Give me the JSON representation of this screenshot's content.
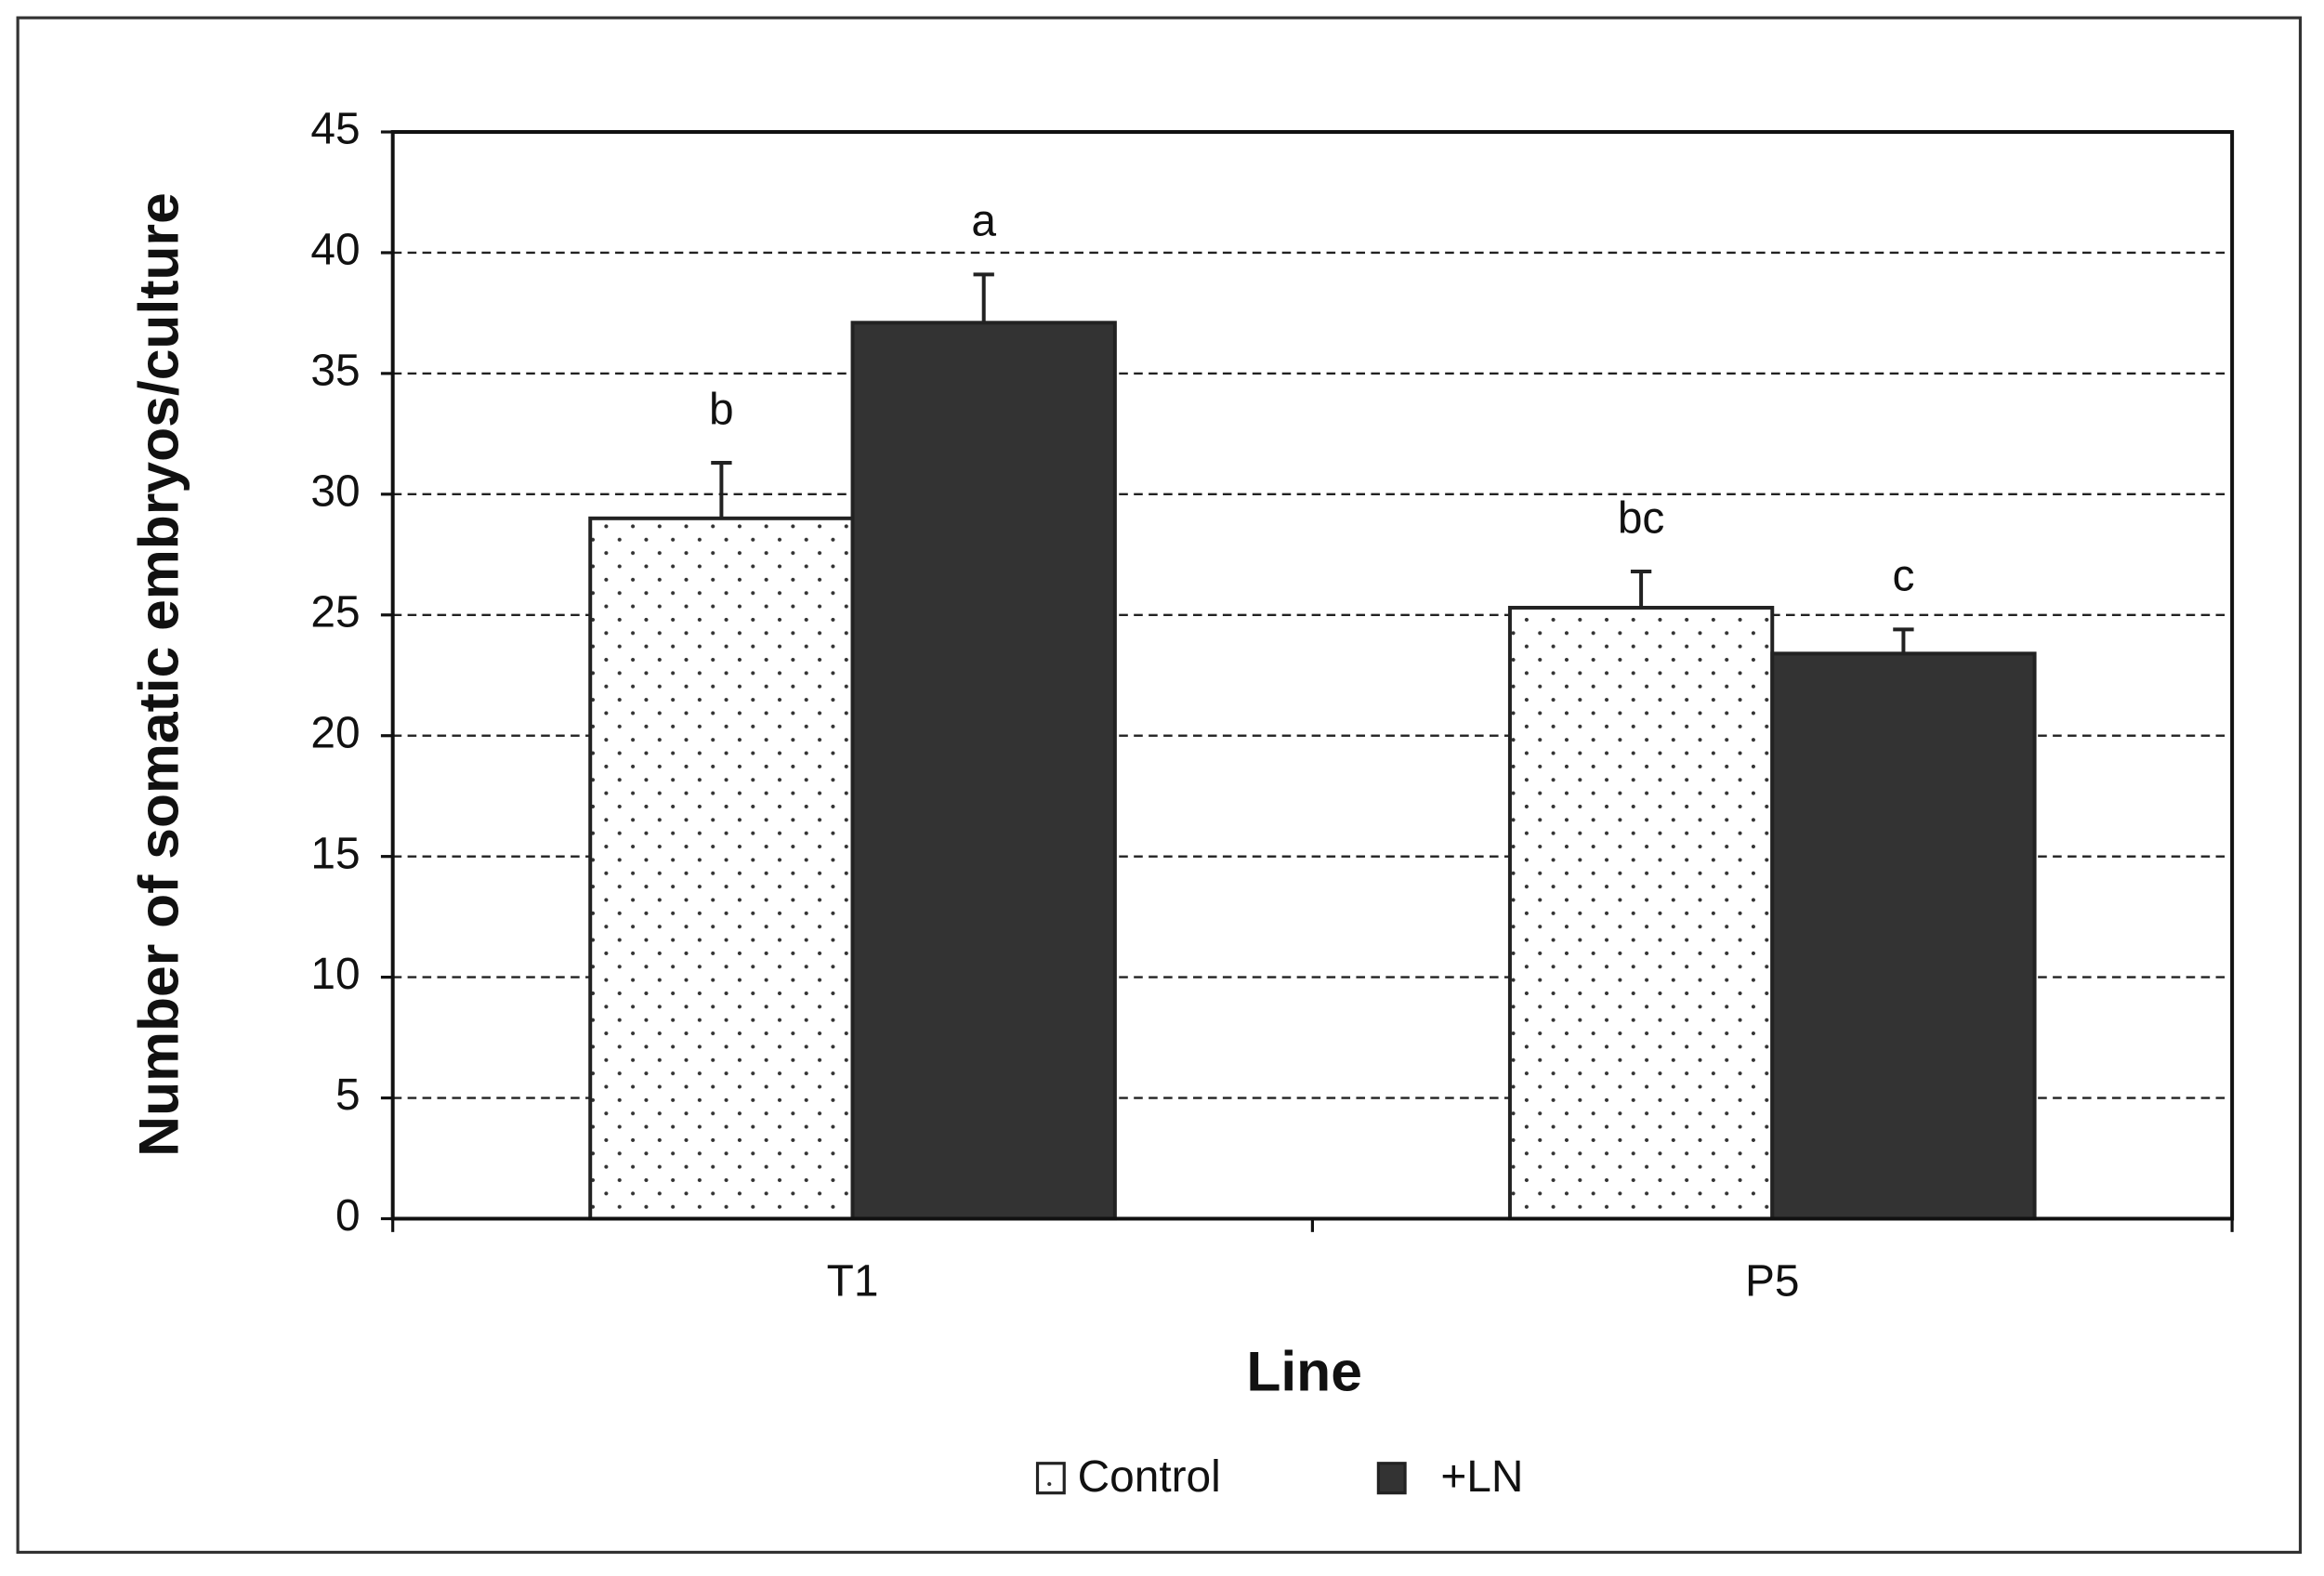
{
  "chart_data": {
    "type": "bar",
    "x_label": "Line",
    "y_label": "Number of somatic embryos/culture",
    "categories": [
      "T1",
      "P5"
    ],
    "series": [
      {
        "name": "Control",
        "color": "#ffffff",
        "pattern": "dots",
        "values": [
          29.0,
          25.3
        ],
        "errors": [
          2.3,
          1.5
        ],
        "letters": [
          "b",
          "bc"
        ]
      },
      {
        "name": "+LN",
        "color": "#333333",
        "values": [
          37.1,
          23.4
        ],
        "errors": [
          2.0,
          1.0
        ],
        "letters": [
          "a",
          "c"
        ]
      }
    ],
    "ylim": [
      0,
      45
    ],
    "yticks": [
      0,
      5,
      10,
      15,
      20,
      25,
      30,
      35,
      40,
      45
    ],
    "grid": true,
    "legend": "bottom"
  }
}
